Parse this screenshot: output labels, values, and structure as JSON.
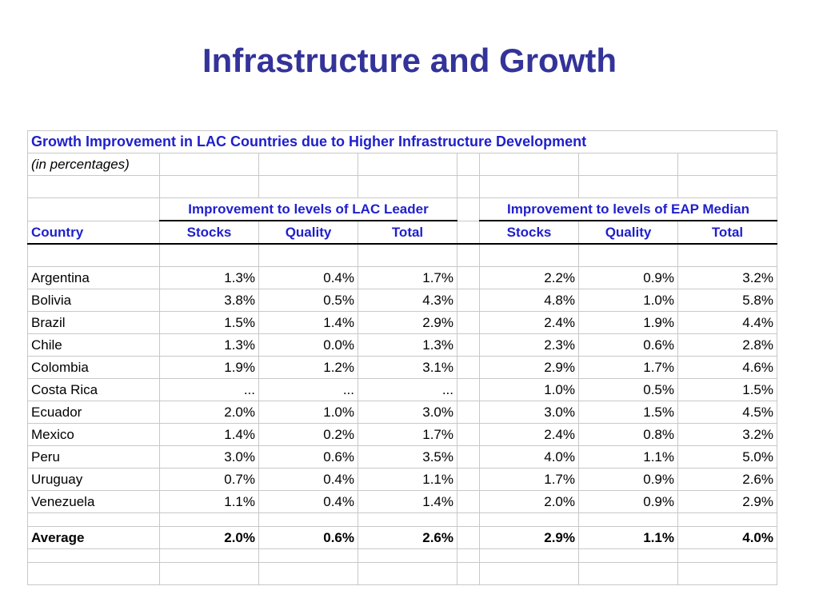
{
  "title": "Infrastructure and Growth",
  "table": {
    "caption": "Growth Improvement in LAC Countries due to Higher Infrastructure Development",
    "note": "(in percentages)",
    "group_headers": [
      "Improvement to levels of LAC Leader",
      "Improvement to levels of EAP Median"
    ],
    "column_headers": {
      "country": "Country",
      "lac": [
        "Stocks",
        "Quality",
        "Total"
      ],
      "eap": [
        "Stocks",
        "Quality",
        "Total"
      ]
    },
    "rows": [
      {
        "country": "Argentina",
        "lac": [
          "1.3%",
          "0.4%",
          "1.7%"
        ],
        "eap": [
          "2.2%",
          "0.9%",
          "3.2%"
        ]
      },
      {
        "country": "Bolivia",
        "lac": [
          "3.8%",
          "0.5%",
          "4.3%"
        ],
        "eap": [
          "4.8%",
          "1.0%",
          "5.8%"
        ]
      },
      {
        "country": "Brazil",
        "lac": [
          "1.5%",
          "1.4%",
          "2.9%"
        ],
        "eap": [
          "2.4%",
          "1.9%",
          "4.4%"
        ]
      },
      {
        "country": "Chile",
        "lac": [
          "1.3%",
          "0.0%",
          "1.3%"
        ],
        "eap": [
          "2.3%",
          "0.6%",
          "2.8%"
        ]
      },
      {
        "country": "Colombia",
        "lac": [
          "1.9%",
          "1.2%",
          "3.1%"
        ],
        "eap": [
          "2.9%",
          "1.7%",
          "4.6%"
        ]
      },
      {
        "country": "Costa Rica",
        "lac": [
          "...",
          "...",
          "..."
        ],
        "eap": [
          "1.0%",
          "0.5%",
          "1.5%"
        ]
      },
      {
        "country": "Ecuador",
        "lac": [
          "2.0%",
          "1.0%",
          "3.0%"
        ],
        "eap": [
          "3.0%",
          "1.5%",
          "4.5%"
        ]
      },
      {
        "country": "Mexico",
        "lac": [
          "1.4%",
          "0.2%",
          "1.7%"
        ],
        "eap": [
          "2.4%",
          "0.8%",
          "3.2%"
        ]
      },
      {
        "country": "Peru",
        "lac": [
          "3.0%",
          "0.6%",
          "3.5%"
        ],
        "eap": [
          "4.0%",
          "1.1%",
          "5.0%"
        ]
      },
      {
        "country": "Uruguay",
        "lac": [
          "0.7%",
          "0.4%",
          "1.1%"
        ],
        "eap": [
          "1.7%",
          "0.9%",
          "2.6%"
        ]
      },
      {
        "country": "Venezuela",
        "lac": [
          "1.1%",
          "0.4%",
          "1.4%"
        ],
        "eap": [
          "2.0%",
          "0.9%",
          "2.9%"
        ]
      }
    ],
    "average": {
      "country": "Average",
      "lac": [
        "2.0%",
        "0.6%",
        "2.6%"
      ],
      "eap": [
        "2.9%",
        "1.1%",
        "4.0%"
      ]
    }
  }
}
